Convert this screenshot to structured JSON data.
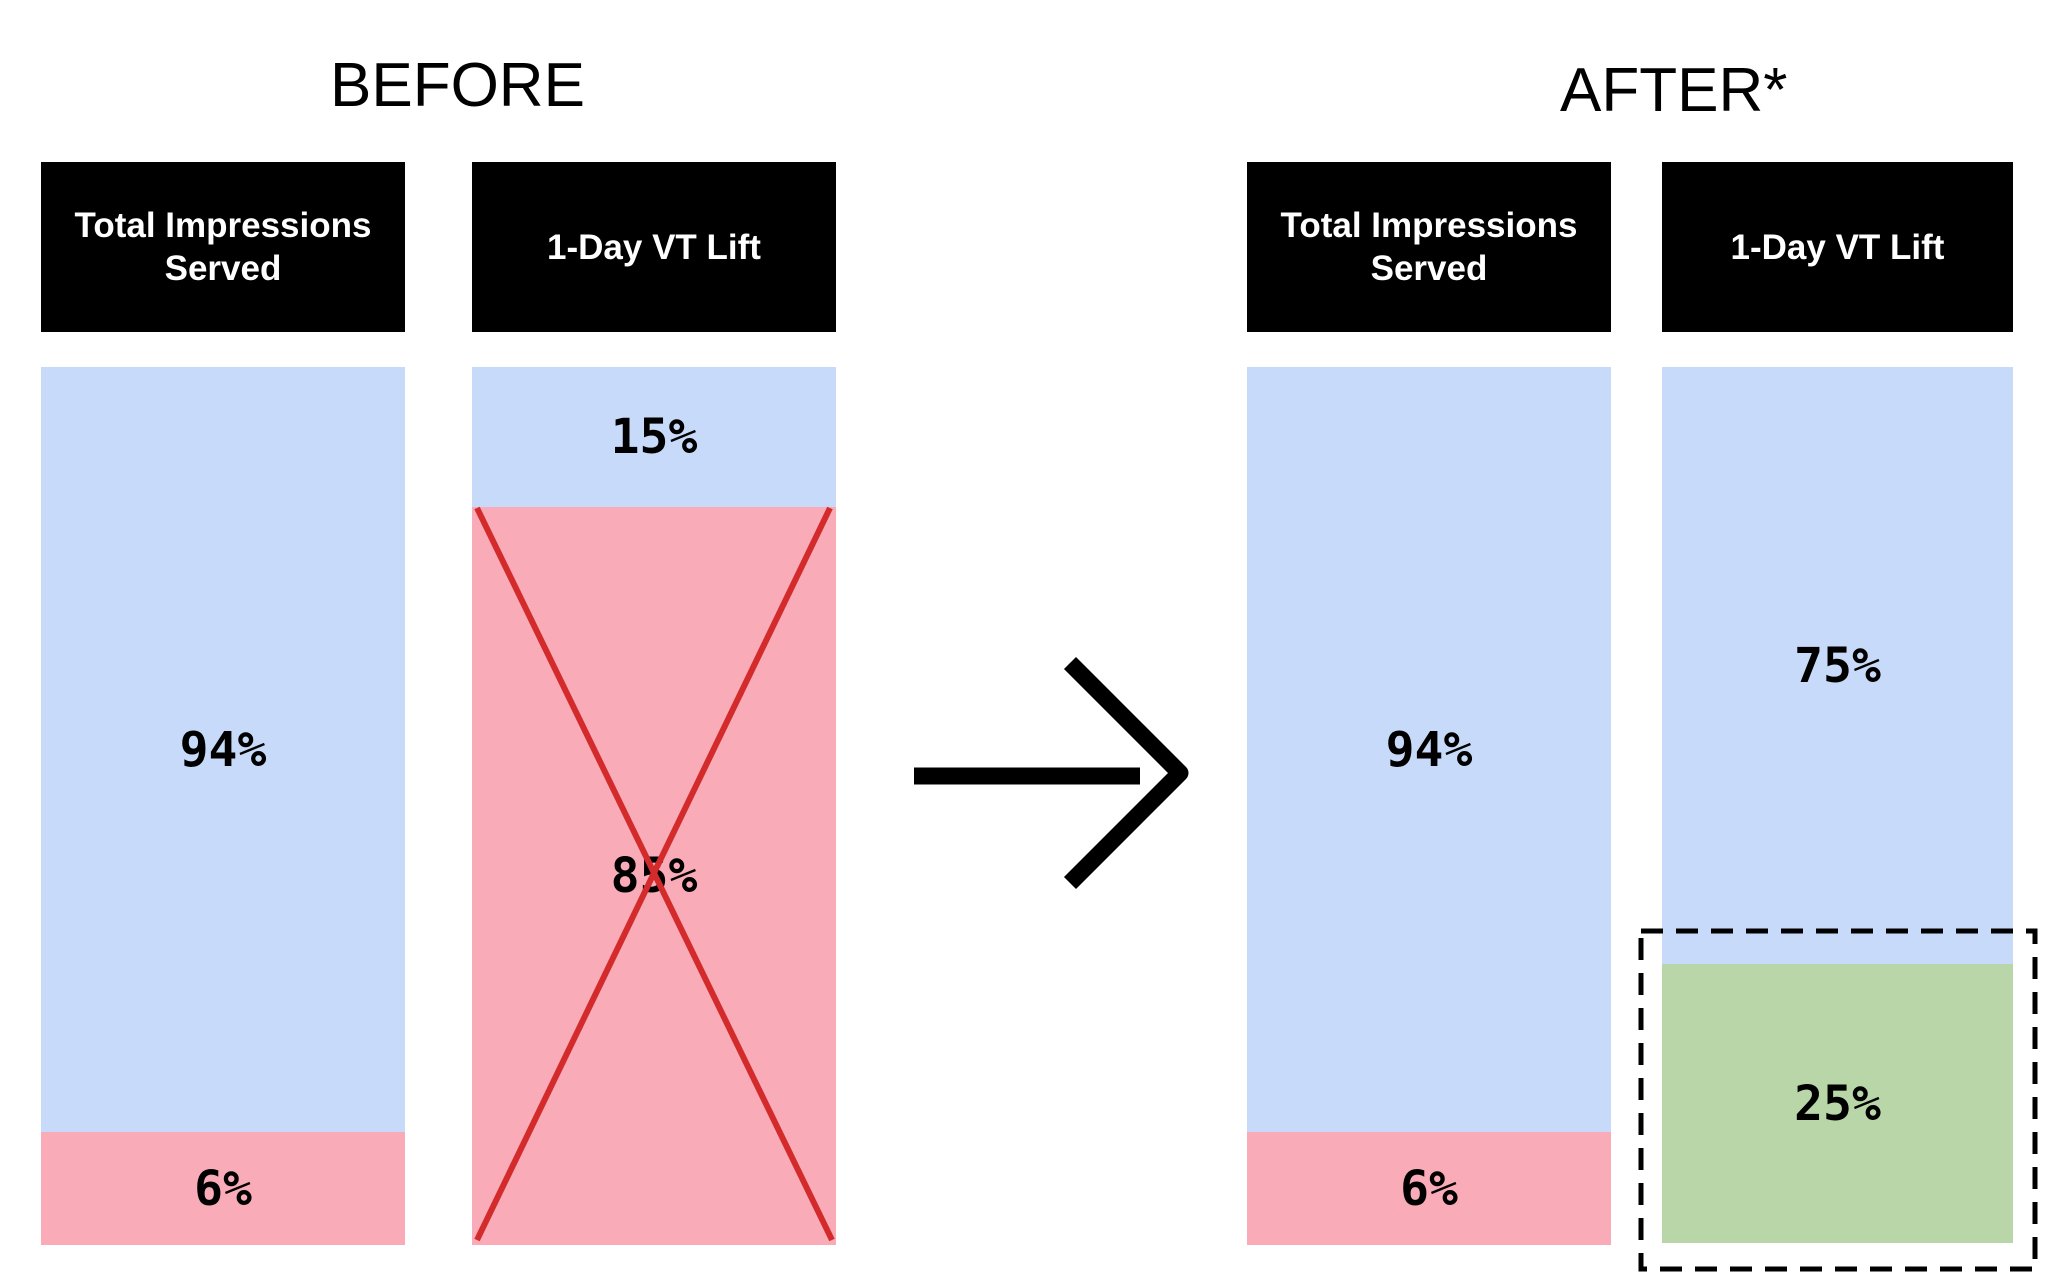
{
  "colors": {
    "kept": "#c8daf9",
    "removed": "#f9abb8",
    "added": "#b8d6a8",
    "header_bg": "#000000",
    "cross": "#d32b2b"
  },
  "before": {
    "title": "BEFORE",
    "impressions_header": "Total Impressions Served",
    "lift_header": "1-Day VT Lift",
    "impressions_top": "94%",
    "impressions_bottom": "6%",
    "lift_top": "15%",
    "lift_bottom": "85%"
  },
  "after": {
    "title": "AFTER*",
    "impressions_header": "Total Impressions Served",
    "lift_header": "1-Day VT Lift",
    "impressions_top": "94%",
    "impressions_bottom": "6%",
    "lift_top": "75%",
    "lift_bottom": "25%"
  },
  "chart_data": [
    {
      "type": "bar",
      "title": "BEFORE",
      "categories": [
        "Total Impressions Served",
        "1-Day VT Lift"
      ],
      "stacked": true,
      "series": [
        {
          "values": [
            94,
            15
          ],
          "color": "#c8daf9"
        },
        {
          "values": [
            6,
            85
          ],
          "color": "#f9abb8"
        }
      ],
      "annotation": "85% segment crossed out",
      "ylim": [
        0,
        100
      ]
    },
    {
      "type": "bar",
      "title": "AFTER*",
      "categories": [
        "Total Impressions Served",
        "1-Day VT Lift"
      ],
      "stacked": true,
      "series": [
        {
          "values": [
            94,
            75
          ],
          "color": "#c8daf9"
        },
        {
          "values": [
            6,
            25
          ],
          "color": [
            "#f9abb8",
            "#b8d6a8"
          ]
        }
      ],
      "annotation": "25% segment outlined with dashed box",
      "ylim": [
        0,
        100
      ]
    }
  ]
}
